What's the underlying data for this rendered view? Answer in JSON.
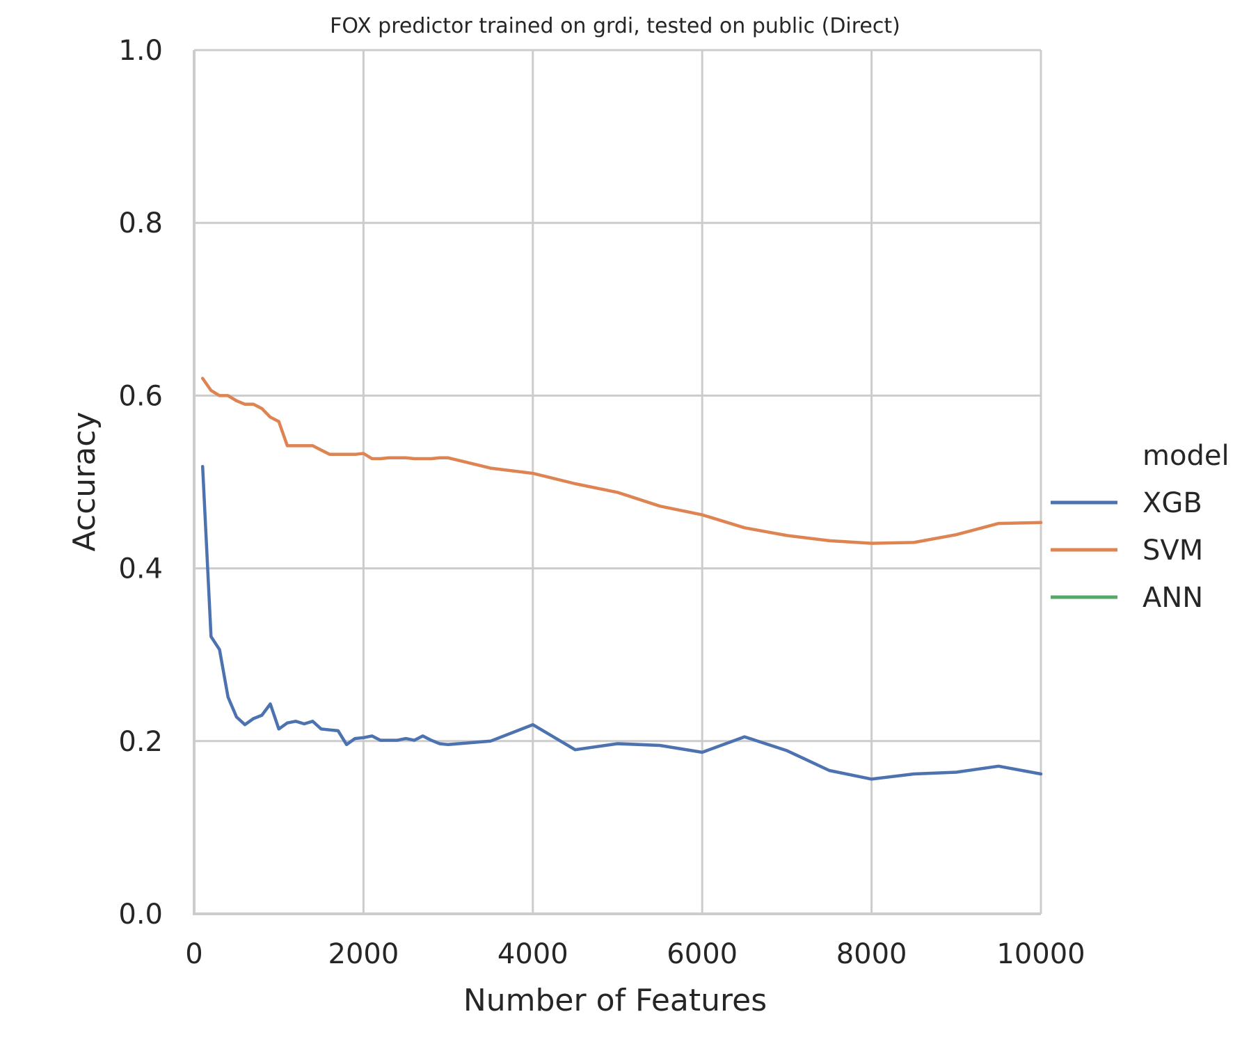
{
  "chart_data": {
    "type": "line",
    "title": "FOX predictor trained on grdi, tested on public (Direct)",
    "xlabel": "Number of Features",
    "ylabel": "Accuracy",
    "xlim": [
      0,
      10000
    ],
    "ylim": [
      0.0,
      1.0
    ],
    "xticks": [
      "0",
      "2000",
      "4000",
      "6000",
      "8000",
      "10000"
    ],
    "yticks": [
      "0.0",
      "0.2",
      "0.4",
      "0.6",
      "0.8",
      "1.0"
    ],
    "grid": true,
    "legend": {
      "title": "model",
      "placement": "right",
      "entries": [
        "XGB",
        "SVM",
        "ANN"
      ]
    },
    "series": [
      {
        "name": "XGB",
        "color": "#4c72b0",
        "x": [
          100,
          200,
          300,
          400,
          500,
          600,
          700,
          800,
          900,
          1000,
          1100,
          1200,
          1300,
          1400,
          1500,
          1600,
          1700,
          1800,
          1900,
          2000,
          2100,
          2200,
          2300,
          2400,
          2500,
          2600,
          2700,
          2800,
          2900,
          3000,
          3500,
          4000,
          4500,
          5000,
          5500,
          6000,
          6500,
          7000,
          7500,
          8000,
          8500,
          9000,
          9500,
          10000
        ],
        "y": [
          0.518,
          0.321,
          0.306,
          0.251,
          0.228,
          0.219,
          0.226,
          0.23,
          0.243,
          0.214,
          0.221,
          0.223,
          0.22,
          0.223,
          0.214,
          0.213,
          0.212,
          0.196,
          0.203,
          0.204,
          0.206,
          0.201,
          0.201,
          0.201,
          0.203,
          0.201,
          0.206,
          0.201,
          0.197,
          0.196,
          0.2,
          0.219,
          0.19,
          0.197,
          0.195,
          0.187,
          0.205,
          0.189,
          0.166,
          0.156,
          0.162,
          0.164,
          0.171,
          0.162
        ]
      },
      {
        "name": "SVM",
        "color": "#dd8452",
        "x": [
          100,
          200,
          300,
          400,
          500,
          600,
          700,
          800,
          900,
          1000,
          1100,
          1200,
          1300,
          1400,
          1500,
          1600,
          1700,
          1800,
          1900,
          2000,
          2100,
          2200,
          2300,
          2400,
          2500,
          2600,
          2700,
          2800,
          2900,
          3000,
          3500,
          4000,
          4500,
          5000,
          5500,
          6000,
          6500,
          7000,
          7500,
          8000,
          8500,
          9000,
          9500,
          10000
        ],
        "y": [
          0.62,
          0.606,
          0.6,
          0.6,
          0.594,
          0.59,
          0.59,
          0.585,
          0.575,
          0.57,
          0.542,
          0.542,
          0.542,
          0.542,
          0.537,
          0.532,
          0.532,
          0.532,
          0.532,
          0.533,
          0.527,
          0.527,
          0.528,
          0.528,
          0.528,
          0.527,
          0.527,
          0.527,
          0.528,
          0.528,
          0.516,
          0.51,
          0.498,
          0.488,
          0.472,
          0.462,
          0.447,
          0.438,
          0.432,
          0.429,
          0.43,
          0.439,
          0.452,
          0.453
        ]
      },
      {
        "name": "ANN",
        "color": "#55a868",
        "x": [],
        "y": []
      }
    ]
  }
}
